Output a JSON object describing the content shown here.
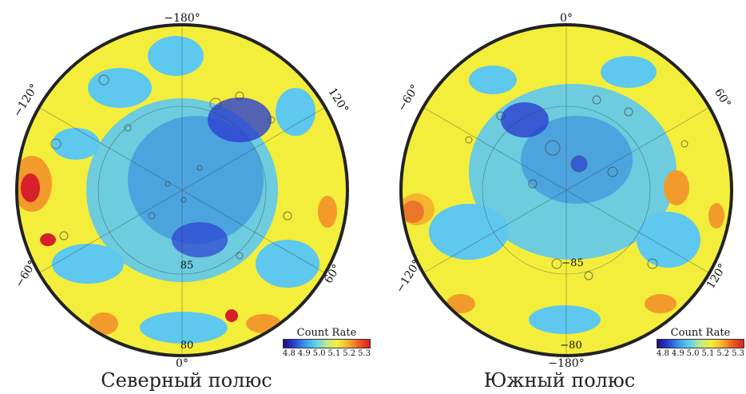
{
  "maps": [
    {
      "id": "north",
      "caption": "Северный полюс",
      "top_longitude_label": "−180°",
      "bottom_longitude_label": "0°",
      "upper_left_label": "−120°",
      "upper_right_label": "120°",
      "lower_left_label": "−60°",
      "lower_right_label": "60°",
      "inner_latitude_label": "85",
      "outer_latitude_label": "80",
      "legend": {
        "title": "Count Rate",
        "ticks": [
          "4.8",
          "4.9",
          "5.0",
          "5.1",
          "5.2",
          "5.3"
        ]
      }
    },
    {
      "id": "south",
      "caption": "Южный полюс",
      "top_longitude_label": "0°",
      "bottom_longitude_label": "−180°",
      "upper_left_label": "−60°",
      "upper_right_label": "60°",
      "lower_left_label": "−120°",
      "lower_right_label": "120°",
      "inner_latitude_label": "−85",
      "outer_latitude_label": "−80",
      "legend": {
        "title": "Count Rate",
        "ticks": [
          "4.8",
          "4.9",
          "5.0",
          "5.1",
          "5.2",
          "5.3"
        ]
      }
    }
  ],
  "colors": {
    "low": "#1a0f7a",
    "blue": "#3a8fe0",
    "cyan": "#5ec8ee",
    "yellow": "#f3ee3c",
    "orange": "#f39b2a",
    "red": "#d6202a"
  }
}
